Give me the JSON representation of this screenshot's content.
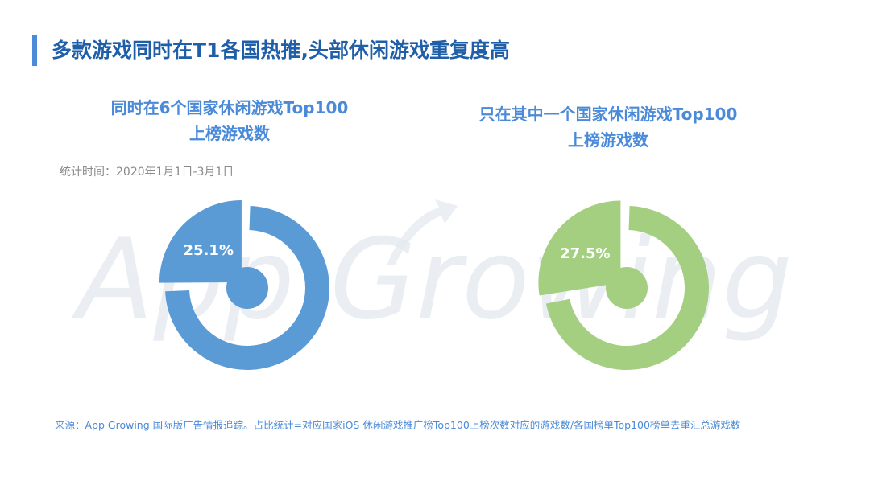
{
  "page": {
    "title": "多款游戏同时在T1各国热推,头部休闲游戏重复度高",
    "period": "统计时间：2020年1月1日-3月1日",
    "source": "来源：App Growing 国际版广告情报追踪。占比统计=对应国家iOS 休闲游戏推广榜Top100上榜次数对应的游戏数/各国榜单Top100榜单去重汇总游戏数",
    "watermark": "App Growing"
  },
  "colors": {
    "title": "#1f5ea8",
    "accent": "#4a8ad8",
    "blue": "#5b9bd5",
    "green": "#a4cf80"
  },
  "chart_data": [
    {
      "type": "pie",
      "title_lines": [
        "同时在6个国家休闲游戏Top100",
        "上榜游戏数"
      ],
      "slices": [
        {
          "value": 25.1,
          "label": "25.1%"
        },
        {
          "value": 74.9,
          "label": ""
        }
      ],
      "color": "#5b9bd5"
    },
    {
      "type": "pie",
      "title_lines": [
        "只在其中一个国家休闲游戏Top100",
        "上榜游戏数"
      ],
      "slices": [
        {
          "value": 27.5,
          "label": "27.5%"
        },
        {
          "value": 72.5,
          "label": ""
        }
      ],
      "color": "#a4cf80"
    }
  ]
}
